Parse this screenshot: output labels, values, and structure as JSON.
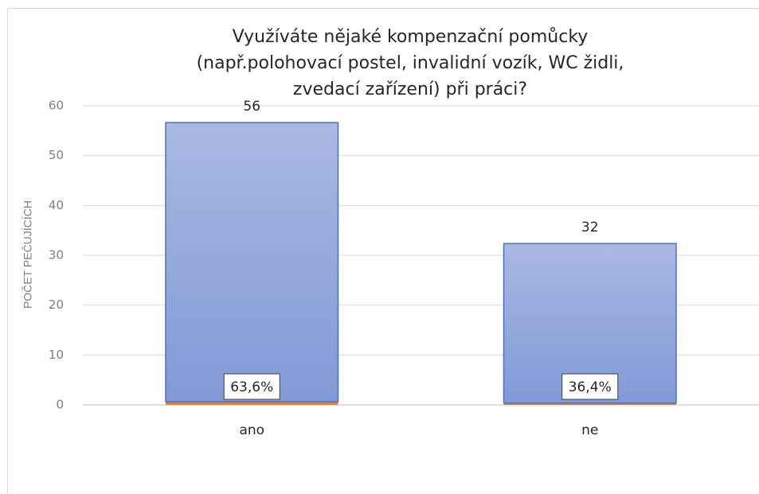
{
  "chart_data": {
    "type": "stacked_bar",
    "title": [
      "Využíváte nějaké kompenzační pomůcky",
      "(např.polohovací postel, invalidní vozík, WC židli,",
      "zvedací zařízení)  při práci?"
    ],
    "y_label": "POČET PEČUJÍCÍCH",
    "categories": [
      "ano",
      "ne"
    ],
    "series": [
      {
        "color": "#ed7d31",
        "values": [
          0.636,
          0.364
        ],
        "value_labels": [
          "63,6%",
          "36,4%"
        ]
      },
      {
        "color": "#8fa3da",
        "values": [
          56,
          32
        ]
      }
    ],
    "ylim": [
      0,
      60
    ],
    "yticks": [
      0,
      10,
      20,
      30,
      40,
      50,
      60
    ],
    "grid": true
  }
}
